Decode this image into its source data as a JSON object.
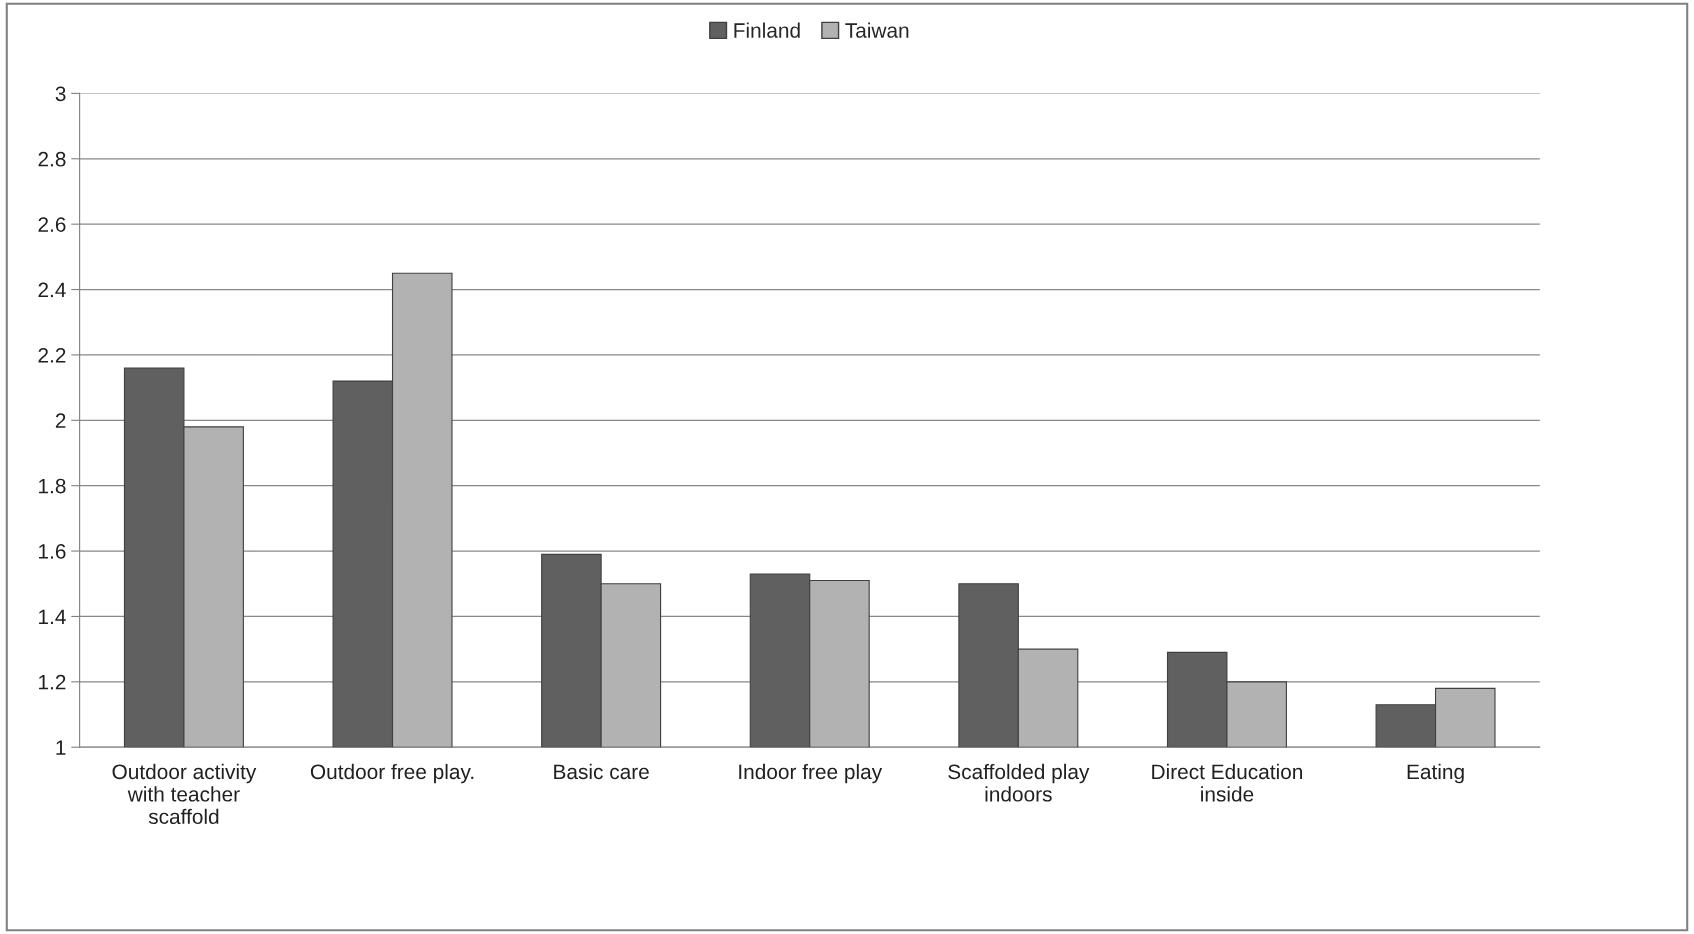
{
  "chart_data": {
    "type": "bar",
    "categories": [
      "Outdoor activity\nwith teacher\nscaffold",
      "Outdoor free play.",
      "Basic care",
      "Indoor free play",
      "Scaffolded play\nindoors",
      "Direct Education\ninside",
      "Eating"
    ],
    "series": [
      {
        "name": "Finland",
        "color": "#606060",
        "values": [
          2.16,
          2.12,
          1.59,
          1.53,
          1.5,
          1.29,
          1.13
        ]
      },
      {
        "name": "Taiwan",
        "color": "#b2b2b2",
        "values": [
          1.98,
          2.45,
          1.5,
          1.51,
          1.3,
          1.2,
          1.18
        ]
      }
    ],
    "ylim": [
      1,
      3
    ],
    "yticks": [
      1,
      1.2,
      1.4,
      1.6,
      1.8,
      2,
      2.2,
      2.4,
      2.6,
      2.8,
      3
    ],
    "grid": "y",
    "legend": "top"
  }
}
